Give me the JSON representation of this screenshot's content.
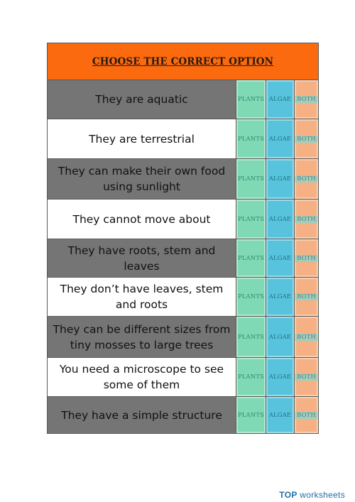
{
  "header": {
    "title": "CHOOSE THE CORRECT OPTION"
  },
  "options": {
    "plants": "PLANTS",
    "algae": "ALGAE",
    "both": "BOTH"
  },
  "rows": [
    {
      "text": "They are aquatic",
      "shade": "dark",
      "height": 54
    },
    {
      "text": "They are terrestrial",
      "shade": "light",
      "height": 55
    },
    {
      "text": "They can make their own food using sunlight",
      "shade": "dark",
      "height": 56
    },
    {
      "text": "They cannot move about",
      "shade": "light",
      "height": 55
    },
    {
      "text": "They have roots, stem and leaves",
      "shade": "dark",
      "height": 53
    },
    {
      "text": "They don’t have leaves, stem and roots",
      "shade": "light",
      "height": 54
    },
    {
      "text": "They can be different sizes from tiny mosses to large trees",
      "shade": "dark",
      "height": 57
    },
    {
      "text": "You need a microscope to see some of them",
      "shade": "light",
      "height": 54
    },
    {
      "text": "They have a simple structure",
      "shade": "dark",
      "height": 51
    }
  ],
  "footer": {
    "brand_top": "TOP",
    "brand_rest": "worksheets"
  }
}
